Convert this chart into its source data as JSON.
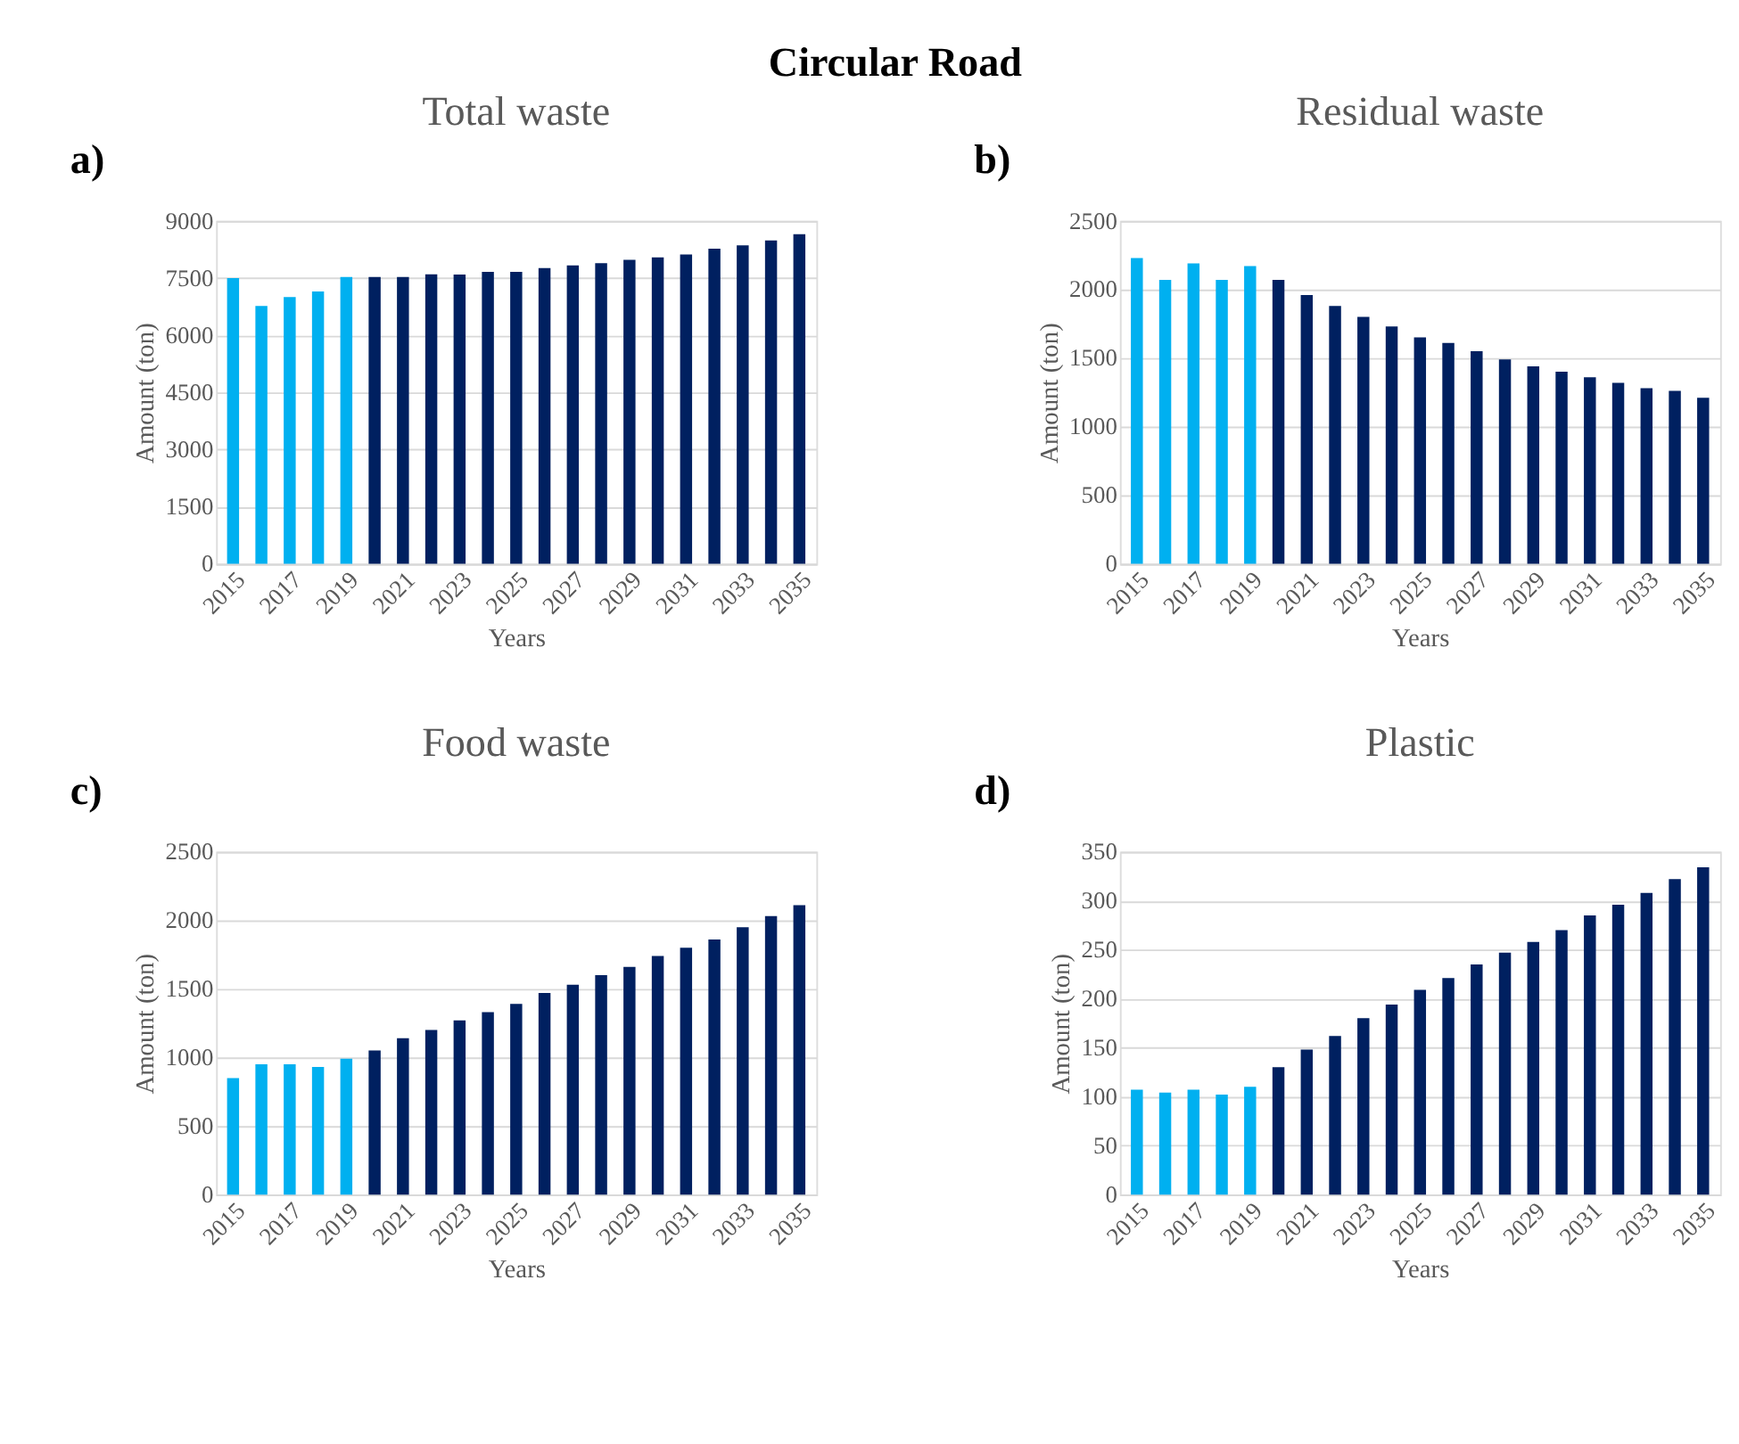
{
  "chart_data": [
    {
      "type": "bar",
      "title": "Total waste",
      "xlabel": "Years",
      "ylabel": "Amount (ton)",
      "annotations": [
        "a)",
        "Circular Road"
      ],
      "categories": [
        "2015",
        null,
        "2017",
        null,
        "2019",
        null,
        "2021",
        null,
        "2023",
        null,
        "2025",
        null,
        "2027",
        null,
        "2029",
        null,
        "2031",
        null,
        "2033",
        null,
        "2035"
      ],
      "values": [
        7500,
        6770,
        7000,
        7150,
        7530,
        7530,
        7530,
        7600,
        7590,
        7660,
        7660,
        7760,
        7830,
        7890,
        7980,
        8040,
        8120,
        8270,
        8360,
        8490,
        8650
      ],
      "colors": [
        "#00b0f0",
        "#00b0f0",
        "#00b0f0",
        "#00b0f0",
        "#00b0f0",
        "#002060",
        "#002060",
        "#002060",
        "#002060",
        "#002060",
        "#002060",
        "#002060",
        "#002060",
        "#002060",
        "#002060",
        "#002060",
        "#002060",
        "#002060",
        "#002060",
        "#002060",
        "#002060"
      ],
      "ylim": [
        0,
        9000
      ],
      "yticks": [
        0,
        1500,
        3000,
        4500,
        6000,
        7500,
        9000
      ],
      "grid": "y"
    },
    {
      "type": "bar",
      "title": "Residual waste",
      "xlabel": "Years",
      "ylabel": "Amount (ton)",
      "annotations": [
        "b)"
      ],
      "categories": [
        "2015",
        null,
        "2017",
        null,
        "2019",
        null,
        "2021",
        null,
        "2023",
        null,
        "2025",
        null,
        "2027",
        null,
        "2029",
        null,
        "2031",
        null,
        "2033",
        null,
        "2035"
      ],
      "values": [
        2230,
        2070,
        2190,
        2070,
        2170,
        2070,
        1960,
        1880,
        1800,
        1730,
        1650,
        1610,
        1550,
        1490,
        1440,
        1400,
        1360,
        1320,
        1280,
        1260,
        1210
      ],
      "colors": [
        "#00b0f0",
        "#00b0f0",
        "#00b0f0",
        "#00b0f0",
        "#00b0f0",
        "#002060",
        "#002060",
        "#002060",
        "#002060",
        "#002060",
        "#002060",
        "#002060",
        "#002060",
        "#002060",
        "#002060",
        "#002060",
        "#002060",
        "#002060",
        "#002060",
        "#002060",
        "#002060"
      ],
      "ylim": [
        0,
        2500
      ],
      "yticks": [
        0,
        500,
        1000,
        1500,
        2000,
        2500
      ],
      "grid": "y"
    },
    {
      "type": "bar",
      "title": "Food waste",
      "xlabel": "Years",
      "ylabel": "Amount (ton)",
      "annotations": [
        "c)"
      ],
      "categories": [
        "2015",
        null,
        "2017",
        null,
        "2019",
        null,
        "2021",
        null,
        "2023",
        null,
        "2025",
        null,
        "2027",
        null,
        "2029",
        null,
        "2031",
        null,
        "2033",
        null,
        "2035"
      ],
      "values": [
        850,
        950,
        950,
        930,
        990,
        1050,
        1140,
        1200,
        1270,
        1330,
        1390,
        1470,
        1530,
        1600,
        1660,
        1740,
        1800,
        1860,
        1950,
        2030,
        2110
      ],
      "colors": [
        "#00b0f0",
        "#00b0f0",
        "#00b0f0",
        "#00b0f0",
        "#00b0f0",
        "#002060",
        "#002060",
        "#002060",
        "#002060",
        "#002060",
        "#002060",
        "#002060",
        "#002060",
        "#002060",
        "#002060",
        "#002060",
        "#002060",
        "#002060",
        "#002060",
        "#002060",
        "#002060"
      ],
      "ylim": [
        0,
        2500
      ],
      "yticks": [
        0,
        500,
        1000,
        1500,
        2000,
        2500
      ],
      "grid": "y"
    },
    {
      "type": "bar",
      "title": "Plastic",
      "xlabel": "Years",
      "ylabel": "Amount (ton)",
      "annotations": [
        "d)"
      ],
      "categories": [
        "2015",
        null,
        "2017",
        null,
        "2019",
        null,
        "2021",
        null,
        "2023",
        null,
        "2025",
        null,
        "2027",
        null,
        "2029",
        null,
        "2031",
        null,
        "2033",
        null,
        "2035"
      ],
      "values": [
        107,
        104,
        107,
        102,
        110,
        130,
        148,
        162,
        180,
        194,
        209,
        221,
        235,
        247,
        258,
        270,
        285,
        296,
        308,
        322,
        334
      ],
      "colors": [
        "#00b0f0",
        "#00b0f0",
        "#00b0f0",
        "#00b0f0",
        "#00b0f0",
        "#002060",
        "#002060",
        "#002060",
        "#002060",
        "#002060",
        "#002060",
        "#002060",
        "#002060",
        "#002060",
        "#002060",
        "#002060",
        "#002060",
        "#002060",
        "#002060",
        "#002060",
        "#002060"
      ],
      "ylim": [
        0,
        350
      ],
      "yticks": [
        0,
        50,
        100,
        150,
        200,
        250,
        300,
        350
      ],
      "grid": "y"
    }
  ]
}
